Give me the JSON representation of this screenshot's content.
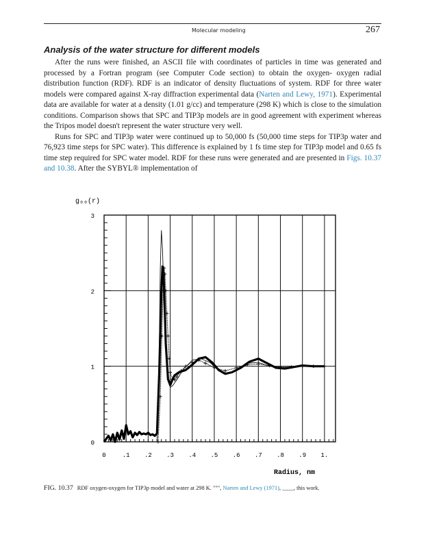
{
  "header": {
    "running_title": "Molecular modeling",
    "page_number": "267"
  },
  "section": {
    "title": "Analysis of the water structure for different models"
  },
  "paragraphs": [
    {
      "pre1": "After the runs were finished, an ASCII file with coordinates of particles in time was generated and processed by a Fortran program (see Computer Code section) to obtain the oxygen- oxygen radial distribution function (RDF). RDF is an indicator of density fluctuations of system. RDF for three water models were compared against X-ray diffraction experimental data (",
      "cite1": "Narten and Lewy, 1971",
      "post1": "). Experimental data are available for water at a density (1.01 g/cc) and temperature (298 K) which is close to the simulation conditions. Comparison shows that SPC and TIP3p models are in good agreement with experiment whereas the Tripos model doesn't represent the water structure very well."
    },
    {
      "pre1": "Runs for SPC and TIP3p water were continued up to 50,000 fs (50,000 time steps for TIP3p water and 76,923 time steps for SPC water). This difference is explained by 1 fs time step for TIP3p model and 0.65 fs time step required for SPC water model. RDF for these runs were generated and are presented in ",
      "cite1": "Figs. 10.37 and 10.38",
      "post1": ". After the SYBYL® implementation of"
    }
  ],
  "figure": {
    "label": "FIG. 10.37",
    "caption_pre": "RDF oxygen-oxygen for TIP3p model and water at 298 K. \"\"\", ",
    "caption_cite": "Narten and Lewy (1971)",
    "caption_post": ", ____, this work."
  },
  "chart_data": {
    "type": "line",
    "title": "",
    "ylabel": "g₀₀(r)",
    "xlabel": "Radius, nm",
    "xlim": [
      0,
      1.05
    ],
    "ylim": [
      0,
      3
    ],
    "x_ticks": [
      "0",
      ".1",
      ".2",
      ".3",
      ".4",
      ".5",
      ".6",
      ".7",
      ".8",
      ".9",
      "1."
    ],
    "y_ticks": [
      "0",
      "1",
      "2",
      "3"
    ],
    "grid": true,
    "series": [
      {
        "style": "crosses",
        "x": [
          0.245,
          0.255,
          0.262,
          0.268,
          0.272,
          0.276,
          0.28,
          0.285,
          0.29,
          0.295,
          0.3,
          0.31,
          0.32,
          0.33,
          0.35,
          0.37,
          0.4,
          0.43,
          0.46,
          0.5,
          0.55,
          0.6,
          0.65,
          0.7,
          0.75,
          0.8,
          0.85,
          0.9,
          0.95,
          1.0
        ],
        "y": [
          0.0,
          0.6,
          1.4,
          2.0,
          2.3,
          2.22,
          2.0,
          1.7,
          1.4,
          1.1,
          0.92,
          0.83,
          0.82,
          0.86,
          0.94,
          1.0,
          1.05,
          1.08,
          1.04,
          0.98,
          0.94,
          0.98,
          1.02,
          1.03,
          1.01,
          0.99,
          0.99,
          1.0,
          1.0,
          1.0
        ]
      },
      {
        "style": "thick",
        "x": [
          0.0,
          0.02,
          0.03,
          0.04,
          0.05,
          0.06,
          0.07,
          0.08,
          0.09,
          0.1,
          0.11,
          0.12,
          0.13,
          0.14,
          0.15,
          0.16,
          0.17,
          0.18,
          0.19,
          0.2,
          0.21,
          0.22,
          0.23,
          0.24,
          0.25,
          0.26,
          0.265,
          0.27,
          0.275,
          0.28,
          0.29,
          0.3,
          0.31,
          0.32,
          0.34,
          0.37,
          0.4,
          0.43,
          0.46,
          0.49,
          0.52,
          0.55,
          0.58,
          0.62,
          0.66,
          0.7,
          0.74,
          0.78,
          0.82,
          0.86,
          0.9,
          0.95,
          1.0
        ],
        "y": [
          0.0,
          0.08,
          0.02,
          0.1,
          0.0,
          0.12,
          0.03,
          0.15,
          0.04,
          0.22,
          0.1,
          0.14,
          0.06,
          0.12,
          0.09,
          0.13,
          0.1,
          0.11,
          0.1,
          0.12,
          0.09,
          0.1,
          0.08,
          0.11,
          0.9,
          2.0,
          2.32,
          2.2,
          1.8,
          1.3,
          0.83,
          0.75,
          0.82,
          0.88,
          0.92,
          0.95,
          1.02,
          1.1,
          1.12,
          1.05,
          0.95,
          0.9,
          0.92,
          0.98,
          1.06,
          1.1,
          1.04,
          0.98,
          0.97,
          0.99,
          1.01,
          1.0,
          1.0
        ]
      },
      {
        "style": "thin",
        "x": [
          0.24,
          0.25,
          0.255,
          0.26,
          0.265,
          0.27,
          0.275,
          0.28,
          0.29,
          0.3,
          0.31,
          0.33,
          0.36,
          0.4,
          0.44,
          0.48,
          0.52,
          0.56,
          0.6,
          0.65,
          0.7,
          0.75,
          0.8,
          0.85,
          0.9,
          0.95,
          1.0
        ],
        "y": [
          0.0,
          1.2,
          2.3,
          2.8,
          2.55,
          2.1,
          1.6,
          1.2,
          0.85,
          0.72,
          0.74,
          0.82,
          0.96,
          1.08,
          1.1,
          1.05,
          0.95,
          0.9,
          0.96,
          1.04,
          1.05,
          1.0,
          0.98,
          0.99,
          1.01,
          1.0,
          1.0
        ]
      }
    ]
  }
}
